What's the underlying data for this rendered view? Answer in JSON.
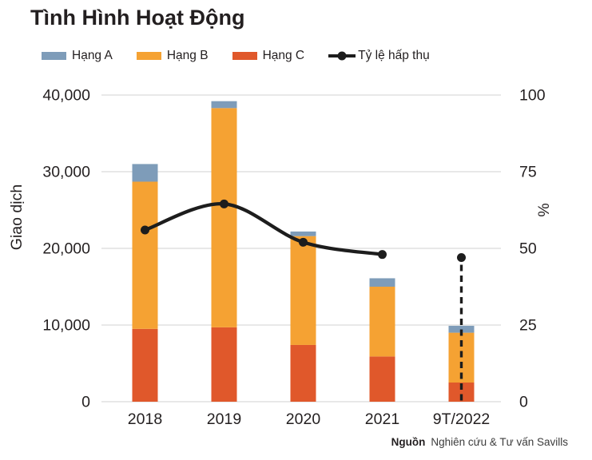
{
  "chart_data": {
    "type": "bar",
    "subtype": "stacked-bar-with-line",
    "title": "Tình Hình Hoạt Động",
    "categories": [
      "2018",
      "2019",
      "2020",
      "2021",
      "9T/2022"
    ],
    "series": [
      {
        "name": "Hạng A",
        "type": "bar",
        "color": "#7E9CB9",
        "values": [
          2300,
          900,
          600,
          1100,
          900
        ]
      },
      {
        "name": "Hạng B",
        "type": "bar",
        "color": "#F5A233",
        "values": [
          19200,
          28600,
          14200,
          9100,
          6500
        ]
      },
      {
        "name": "Hạng C",
        "type": "bar",
        "color": "#E0582B",
        "values": [
          9500,
          9700,
          7400,
          5900,
          2500
        ]
      },
      {
        "name": "Tỷ lệ hấp thụ",
        "type": "line",
        "axis": "right",
        "color": "#1d1d1d",
        "values": [
          56,
          64.5,
          52,
          48,
          47
        ],
        "last_point_style": "detached-with-dashed-dropline"
      }
    ],
    "stacked": true,
    "stack_order_bottom_to_top": [
      "Hạng C",
      "Hạng B",
      "Hạng A"
    ],
    "bar_totals": [
      31000,
      39200,
      22200,
      16100,
      9900
    ],
    "ylabel_left": "Giao dịch",
    "ylabel_right": "%",
    "ylim_left": [
      0,
      40000
    ],
    "ylim_right": [
      0,
      100
    ],
    "yticks_left": [
      0,
      10000,
      20000,
      30000,
      40000
    ],
    "yticks_right": [
      0,
      25,
      50,
      75,
      100
    ],
    "grid": true,
    "legend_position": "top",
    "gridline_color": "#d9d9d9",
    "text_color": "#231f20"
  },
  "source": {
    "label": "Nguồn",
    "text": "Nghiên cứu & Tư vấn Savills"
  }
}
